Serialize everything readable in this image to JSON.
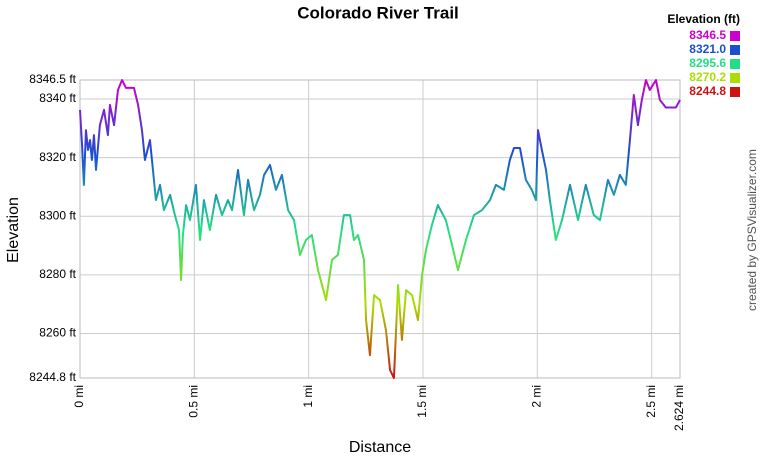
{
  "chart_data": {
    "type": "line",
    "title": "Colorado River Trail",
    "x_label": "Distance",
    "y_label": "Elevation",
    "credit": "created by GPSVisualizer.com",
    "x": [
      0,
      0.009,
      0.017,
      0.026,
      0.035,
      0.044,
      0.052,
      0.061,
      0.07,
      0.087,
      0.105,
      0.122,
      0.131,
      0.149,
      0.166,
      0.184,
      0.201,
      0.236,
      0.254,
      0.271,
      0.284,
      0.306,
      0.319,
      0.332,
      0.35,
      0.367,
      0.394,
      0.415,
      0.433,
      0.442,
      0.45,
      0.464,
      0.481,
      0.507,
      0.525,
      0.542,
      0.568,
      0.595,
      0.621,
      0.647,
      0.665,
      0.691,
      0.717,
      0.735,
      0.761,
      0.787,
      0.805,
      0.831,
      0.857,
      0.883,
      0.91,
      0.936,
      0.962,
      0.988,
      1.014,
      1.041,
      1.076,
      1.102,
      1.128,
      1.154,
      1.181,
      1.198,
      1.216,
      1.242,
      1.251,
      1.268,
      1.286,
      1.312,
      1.338,
      1.356,
      1.373,
      1.391,
      1.408,
      1.426,
      1.452,
      1.478,
      1.496,
      1.513,
      1.539,
      1.565,
      1.6,
      1.627,
      1.653,
      1.688,
      1.723,
      1.758,
      1.793,
      1.819,
      1.854,
      1.88,
      1.898,
      1.924,
      1.95,
      1.976,
      1.994,
      2.003,
      2.02,
      2.038,
      2.055,
      2.081,
      2.108,
      2.143,
      2.178,
      2.212,
      2.247,
      2.274,
      2.309,
      2.335,
      2.361,
      2.387,
      2.405,
      2.422,
      2.44,
      2.457,
      2.475,
      2.492,
      2.519,
      2.536,
      2.562,
      2.606,
      2.624
    ],
    "values": [
      8336.3,
      8324.3,
      8310.7,
      8329.4,
      8322.6,
      8326,
      8319.2,
      8327.7,
      8315.8,
      8331.1,
      8336.3,
      8327.7,
      8338,
      8331.1,
      8343.1,
      8346.5,
      8343.8,
      8343.8,
      8338,
      8329.4,
      8319.2,
      8326,
      8315.8,
      8305.5,
      8310.7,
      8302.1,
      8307.3,
      8300.4,
      8295.3,
      8278.2,
      8293.6,
      8303.8,
      8298.7,
      8310.7,
      8291.9,
      8305.5,
      8295.3,
      8307.3,
      8300.4,
      8305.5,
      8302.1,
      8315.8,
      8300.4,
      8312.4,
      8302.1,
      8307.3,
      8314.1,
      8317.5,
      8309,
      8314.1,
      8302.1,
      8298.7,
      8286.8,
      8291.9,
      8293.6,
      8281.6,
      8271.4,
      8285.1,
      8286.8,
      8300.4,
      8300.4,
      8291.9,
      8293.6,
      8285.1,
      8264.6,
      8252.6,
      8273.1,
      8271.4,
      8261.2,
      8247.5,
      8244.8,
      8276.5,
      8257.8,
      8274.8,
      8273.1,
      8264.6,
      8279.9,
      8288.5,
      8297,
      8303.8,
      8298.7,
      8290.2,
      8281.6,
      8291.9,
      8300.4,
      8302.1,
      8305.5,
      8310.7,
      8309,
      8319.2,
      8323.3,
      8323.3,
      8312.4,
      8309,
      8305.5,
      8329.4,
      8322.6,
      8315.8,
      8305.5,
      8291.9,
      8298.7,
      8310.7,
      8298.7,
      8310.7,
      8300.4,
      8298.7,
      8312.4,
      8307.3,
      8314.1,
      8310.7,
      8326,
      8341.4,
      8331.1,
      8339.7,
      8346.5,
      8343.1,
      8346.5,
      8339.7,
      8337.1,
      8337.1,
      8339.7
    ],
    "xlim": [
      0,
      2.624
    ],
    "xticks": [
      {
        "value": 0,
        "label": "0 mi"
      },
      {
        "value": 0.5,
        "label": "0.5 mi"
      },
      {
        "value": 1,
        "label": "1 mi"
      },
      {
        "value": 1.5,
        "label": "1.5 mi"
      },
      {
        "value": 2,
        "label": "2 mi"
      },
      {
        "value": 2.5,
        "label": "2.5 mi"
      },
      {
        "value": 2.624,
        "label": "2.624 mi"
      }
    ],
    "ylim": [
      8244.8,
      8346.5
    ],
    "yticks": [
      {
        "value": 8244.8,
        "label": "8244.8 ft"
      },
      {
        "value": 8260,
        "label": "8260 ft"
      },
      {
        "value": 8280,
        "label": "8280 ft"
      },
      {
        "value": 8300,
        "label": "8300 ft"
      },
      {
        "value": 8320,
        "label": "8320 ft"
      },
      {
        "value": 8340,
        "label": "8340 ft"
      },
      {
        "value": 8346.5,
        "label": "8346.5 ft"
      }
    ],
    "grid": true,
    "color_scale": {
      "title": "Elevation (ft)",
      "stops": [
        {
          "value": 8346.5,
          "label": "8346.5",
          "color": "#cc00cc"
        },
        {
          "value": 8321,
          "label": "8321.0",
          "color": "#1a4fd0"
        },
        {
          "value": 8295.6,
          "label": "8295.6",
          "color": "#22dd88"
        },
        {
          "value": 8270.2,
          "label": "8270.2",
          "color": "#aadd00"
        },
        {
          "value": 8244.8,
          "label": "8244.8",
          "color": "#cc1111"
        }
      ]
    }
  }
}
